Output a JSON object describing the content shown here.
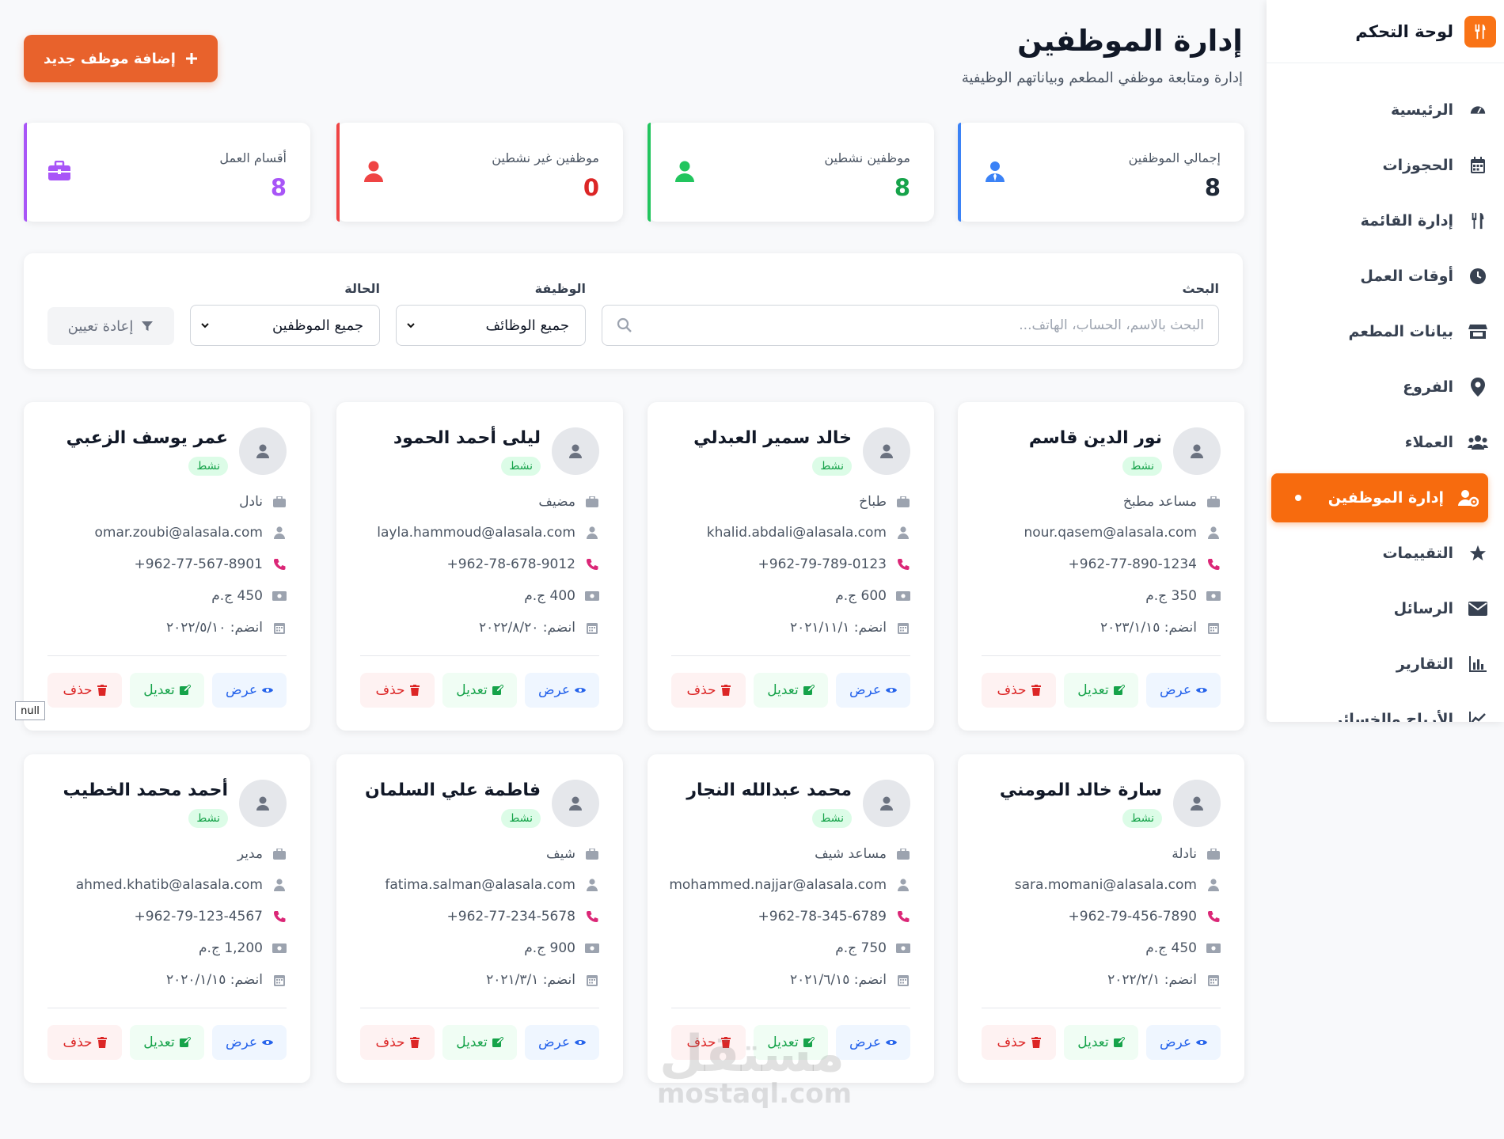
{
  "sidebar": {
    "title": "لوحة التحكم",
    "items": [
      {
        "label": "الرئيسية",
        "icon": "dashboard-icon"
      },
      {
        "label": "الحجوزات",
        "icon": "calendar-icon"
      },
      {
        "label": "إدارة القائمة",
        "icon": "utensils-icon"
      },
      {
        "label": "أوقات العمل",
        "icon": "clock-icon"
      },
      {
        "label": "بيانات المطعم",
        "icon": "store-icon"
      },
      {
        "label": "الفروع",
        "icon": "map-pin-icon"
      },
      {
        "label": "العملاء",
        "icon": "users-icon"
      },
      {
        "label": "إدارة الموظفين",
        "icon": "user-cog-icon",
        "active": true
      },
      {
        "label": "التقييمات",
        "icon": "star-icon"
      },
      {
        "label": "الرسائل",
        "icon": "envelope-icon"
      },
      {
        "label": "التقارير",
        "icon": "bar-chart-icon"
      },
      {
        "label": "الأرباح والخسائر",
        "icon": "chart-icon"
      }
    ]
  },
  "header": {
    "title": "إدارة الموظفين",
    "subtitle": "إدارة ومتابعة موظفي المطعم وبياناتهم الوظيفية",
    "add_button": "إضافة موظف جديد"
  },
  "stats": [
    {
      "label": "إجمالي الموظفين",
      "value": "8",
      "color": "#3b82f6",
      "value_color": "#1f2937",
      "icon": "user-tie-icon"
    },
    {
      "label": "موظفين نشطين",
      "value": "8",
      "color": "#22c55e",
      "value_color": "#16a34a",
      "icon": "user-check-icon"
    },
    {
      "label": "موظفين غير نشطين",
      "value": "0",
      "color": "#ef4444",
      "value_color": "#dc2626",
      "icon": "user-x-icon"
    },
    {
      "label": "أقسام العمل",
      "value": "8",
      "color": "#a855f7",
      "value_color": "#a855f7",
      "icon": "briefcase-icon"
    }
  ],
  "filters": {
    "search_label": "البحث",
    "search_placeholder": "البحث بالاسم، الحساب، الهاتف...",
    "job_label": "الوظيفة",
    "job_value": "جميع الوظائف",
    "status_label": "الحالة",
    "status_value": "جميع الموظفين",
    "reset": "إعادة تعيين"
  },
  "card_actions": {
    "view": "عرض",
    "edit": "تعديل",
    "delete": "حذف"
  },
  "employees": [
    {
      "name": "نور الدين قاسم",
      "status": "نشط",
      "role": "مساعد مطبخ",
      "email": "nour.qasem@alasala.com",
      "phone": "962-77-890-1234+",
      "salary": "350 ج.م",
      "joined": "انضم: ٢٠٢٣/١/١٥"
    },
    {
      "name": "خالد سمير العبدلي",
      "status": "نشط",
      "role": "طباخ",
      "email": "khalid.abdali@alasala.com",
      "phone": "962-79-789-0123+",
      "salary": "600 ج.م",
      "joined": "انضم: ٢٠٢١/١١/١"
    },
    {
      "name": "ليلى أحمد الحمود",
      "status": "نشط",
      "role": "مضيف",
      "email": "layla.hammoud@alasala.com",
      "phone": "962-78-678-9012+",
      "salary": "400 ج.م",
      "joined": "انضم: ٢٠٢٢/٨/٢٠"
    },
    {
      "name": "عمر يوسف الزعبي",
      "status": "نشط",
      "role": "نادل",
      "email": "omar.zoubi@alasala.com",
      "phone": "962-77-567-8901+",
      "salary": "450 ج.م",
      "joined": "انضم: ٢٠٢٢/٥/١٠"
    },
    {
      "name": "سارة خالد المومني",
      "status": "نشط",
      "role": "نادلة",
      "email": "sara.momani@alasala.com",
      "phone": "962-79-456-7890+",
      "salary": "450 ج.م",
      "joined": "انضم: ٢٠٢٢/٢/١"
    },
    {
      "name": "محمد عبدالله النجار",
      "status": "نشط",
      "role": "مساعد شيف",
      "email": "mohammed.najjar@alasala.com",
      "phone": "962-78-345-6789+",
      "salary": "750 ج.م",
      "joined": "انضم: ٢٠٢١/٦/١٥"
    },
    {
      "name": "فاطمة علي السلمان",
      "status": "نشط",
      "role": "شيف",
      "email": "fatima.salman@alasala.com",
      "phone": "962-77-234-5678+",
      "salary": "900 ج.م",
      "joined": "انضم: ٢٠٢١/٣/١"
    },
    {
      "name": "أحمد محمد الخطيب",
      "status": "نشط",
      "role": "مدير",
      "email": "ahmed.khatib@alasala.com",
      "phone": "962-79-123-4567+",
      "salary": "1,200 ج.م",
      "joined": "انضم: ٢٠٢٠/١/١٥"
    }
  ],
  "tooltip": "null",
  "watermark": {
    "line1": "مستقل",
    "line2": "mostaql.com"
  }
}
